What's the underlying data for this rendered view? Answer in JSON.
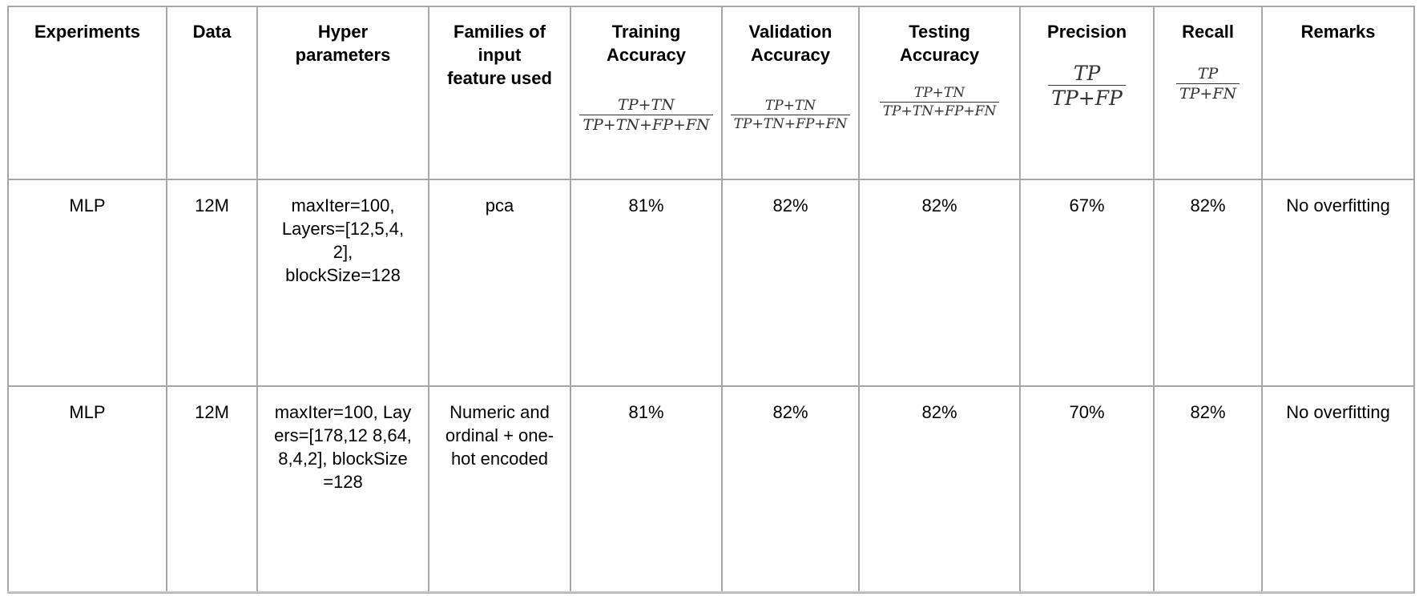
{
  "table": {
    "headers": {
      "experiments": "Experiments",
      "data": "Data",
      "hyper": "Hyper parameters",
      "families": "Families of input feature used",
      "training": "Training Accuracy",
      "validation": "Validation Accuracy",
      "testing": "Testing Accuracy",
      "precision": "Precision",
      "recall": "Recall",
      "remarks": "Remarks"
    },
    "formulas": {
      "accuracy_numerator": "TP+TN",
      "accuracy_denominator": "TP+TN+FP+FN",
      "precision_numerator": "TP",
      "precision_denominator": "TP+FP",
      "recall_numerator": "TP",
      "recall_denominator": "TP+FN"
    },
    "rows": [
      {
        "experiment": "MLP",
        "data": "12M",
        "hyper": "maxIter=100, Layers=[12,5,4, 2], blockSize=128",
        "families": "pca",
        "training": "81%",
        "validation": "82%",
        "testing": "82%",
        "precision": "67%",
        "recall": "82%",
        "remarks": "No overfitting"
      },
      {
        "experiment": "MLP",
        "data": "12M",
        "hyper": "maxIter=100, Layers=[178,12 8,64,8,4,2], blockSize=128",
        "families": "Numeric and ordinal + one-hot encoded",
        "training": "81%",
        "validation": "82%",
        "testing": "82%",
        "precision": "70%",
        "recall": "82%",
        "remarks": "No overfitting"
      }
    ]
  }
}
